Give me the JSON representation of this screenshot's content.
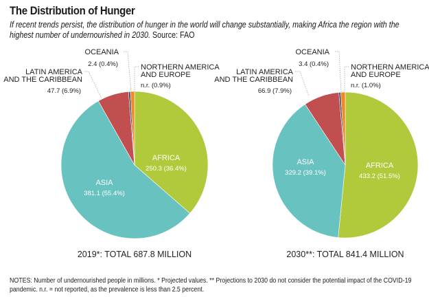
{
  "title": "The Distribution of Hunger",
  "subtitle": "If recent trends persist, the distribution of hunger in the world will change substantially, making Africa the region with the highest number of undernourished in 2030.",
  "source": "Source: FAO",
  "notes": "NOTES: Number of undernourished people in millions. * Projected values. ** Projections to 2030 do not consider the potential impact of the COVID-19 pandemic. n.r. = not reported, as the prevalence is less than 2.5 percent.",
  "colors": {
    "africa": "#b1ca3b",
    "asia": "#68c3c0",
    "latin_america": "#c24f4f",
    "oceania": "#3b4668",
    "northern_america_europe": "#f08a22"
  },
  "chart_data": [
    {
      "type": "pie",
      "caption": "2019*: TOTAL 687.8 MILLION",
      "slices": [
        {
          "name": "AFRICA",
          "value": 250.3,
          "percent": 36.4,
          "label": "250.3  (36.4%)",
          "color": "#b1ca3b"
        },
        {
          "name": "ASIA",
          "value": 381.1,
          "percent": 55.4,
          "label": "381.1  (55.4%)",
          "color": "#68c3c0"
        },
        {
          "name": "LATIN AMERICA AND THE CARIBBEAN",
          "value": 47.7,
          "percent": 6.9,
          "label": "47.7  (6.9%)",
          "color": "#c24f4f"
        },
        {
          "name": "OCEANIA",
          "value": 2.4,
          "percent": 0.4,
          "label": "2.4  (0.4%)",
          "color": "#3b4668"
        },
        {
          "name": "NORTHERN AMERICA AND EUROPE",
          "value": "n.r.",
          "percent": 0.9,
          "label": "n.r. (0.9%)",
          "color": "#f08a22"
        }
      ]
    },
    {
      "type": "pie",
      "caption": "2030**: TOTAL 841.4 MILLION",
      "slices": [
        {
          "name": "AFRICA",
          "value": 433.2,
          "percent": 51.5,
          "label": "433.2  (51.5%)",
          "color": "#b1ca3b"
        },
        {
          "name": "ASIA",
          "value": 329.2,
          "percent": 39.1,
          "label": "329.2  (39.1%)",
          "color": "#68c3c0"
        },
        {
          "name": "LATIN AMERICA AND THE CARIBBEAN",
          "value": 66.9,
          "percent": 7.9,
          "label": "66.9  (7.9%)",
          "color": "#c24f4f"
        },
        {
          "name": "OCEANIA",
          "value": 3.4,
          "percent": 0.4,
          "label": "3.4  (0.4%)",
          "color": "#3b4668"
        },
        {
          "name": "NORTHERN AMERICA AND EUROPE",
          "value": "n.r.",
          "percent": 1.0,
          "label": "n.r. (1.0%)",
          "color": "#f08a22"
        }
      ]
    }
  ]
}
